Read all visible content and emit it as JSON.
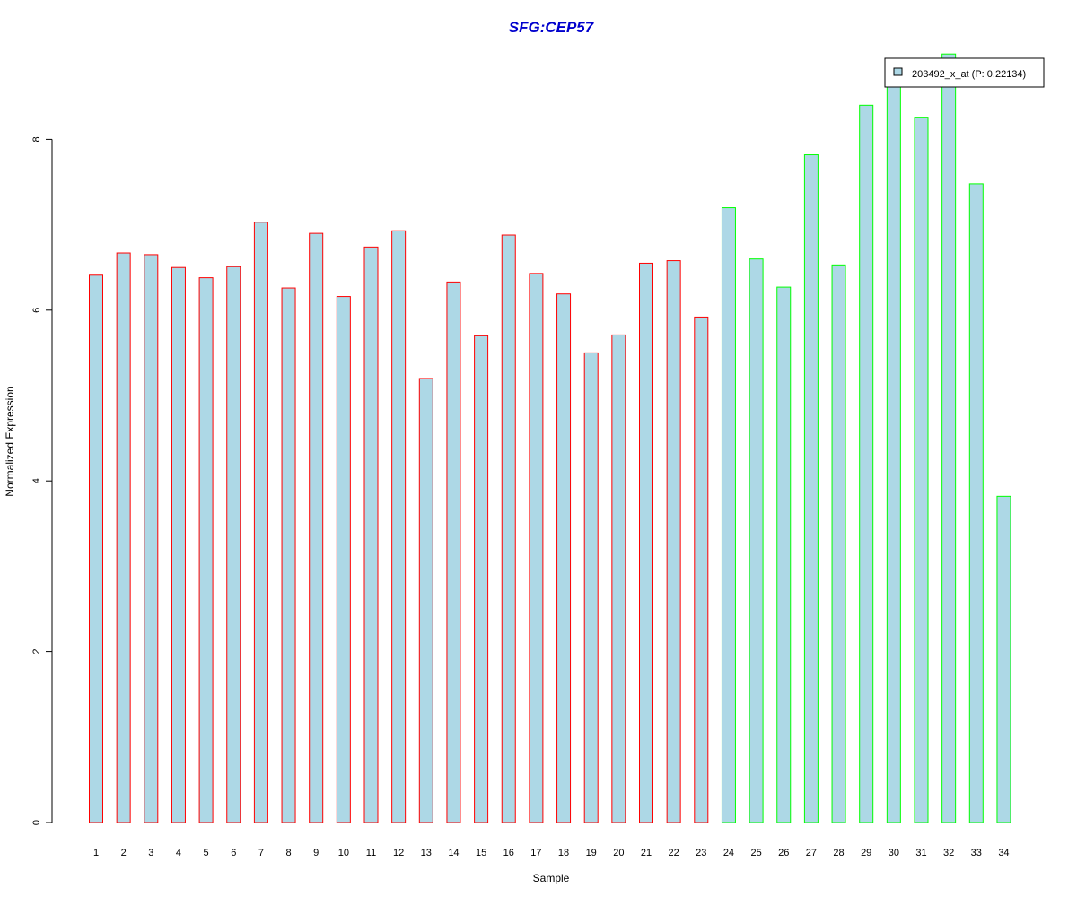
{
  "chart_data": {
    "type": "bar",
    "title": "SFG:CEP57",
    "xlabel": "Sample",
    "ylabel": "Normalized Expression",
    "ylim": [
      0,
      9.2
    ],
    "yticks": [
      0,
      2,
      4,
      6,
      8
    ],
    "categories": [
      "1",
      "2",
      "3",
      "4",
      "5",
      "6",
      "7",
      "8",
      "9",
      "10",
      "11",
      "12",
      "13",
      "14",
      "15",
      "16",
      "17",
      "18",
      "19",
      "20",
      "21",
      "22",
      "23",
      "24",
      "25",
      "26",
      "27",
      "28",
      "29",
      "30",
      "31",
      "32",
      "33",
      "34"
    ],
    "values": [
      6.41,
      6.67,
      6.65,
      6.5,
      6.38,
      6.51,
      7.03,
      6.26,
      6.9,
      6.16,
      6.74,
      6.93,
      5.2,
      6.33,
      5.7,
      6.88,
      6.43,
      6.19,
      5.5,
      5.71,
      6.55,
      6.58,
      5.92,
      7.2,
      6.6,
      6.27,
      7.82,
      6.53,
      8.4,
      8.65,
      8.26,
      9.0,
      7.48,
      3.82
    ],
    "groups": [
      "red",
      "red",
      "red",
      "red",
      "red",
      "red",
      "red",
      "red",
      "red",
      "red",
      "red",
      "red",
      "red",
      "red",
      "red",
      "red",
      "red",
      "red",
      "red",
      "red",
      "red",
      "red",
      "red",
      "green",
      "green",
      "green",
      "green",
      "green",
      "green",
      "green",
      "green",
      "green",
      "green",
      "green"
    ],
    "grid": false,
    "legend": {
      "position": "top-right",
      "entries": [
        {
          "label": "203492_x_at (P: 0.22134)"
        }
      ]
    },
    "colors": {
      "bar_fill": "#add8e6",
      "group_red_border": "#ff0000",
      "group_green_border": "#00ff00",
      "title": "#0000cd"
    }
  }
}
